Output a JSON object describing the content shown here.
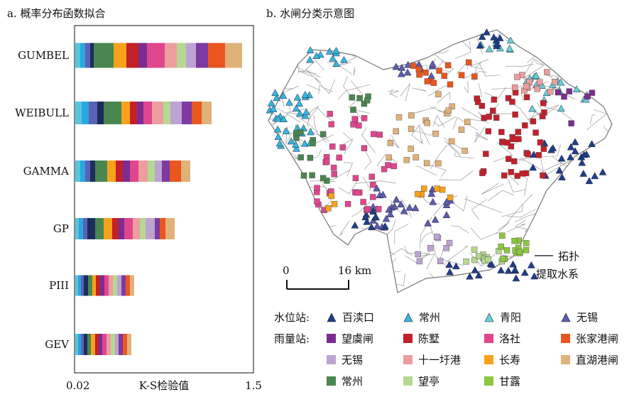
{
  "panel_a": {
    "title": "a. 概率分布函数拟合"
  },
  "panel_b": {
    "title": "b. 水闸分类示意图"
  },
  "chart_data": {
    "type": "bar",
    "orientation": "horizontal",
    "stacked": true,
    "categories": [
      "GUMBEL",
      "WEIBULL",
      "GAMMA",
      "GP",
      "PIII",
      "GEV"
    ],
    "xlabel": "K-S检验值",
    "x_ticks": [
      "0.02",
      "1.5"
    ],
    "xlim": [
      0.02,
      1.5
    ],
    "segment_colors": [
      "#56c7dc",
      "#2aa7e0",
      "#5a62b5",
      "#1b2d5c",
      "#4a8650",
      "#f7a21a",
      "#c4202a",
      "#7b2c91",
      "#e0468d",
      "#ec9d9e",
      "#b5d991",
      "#bda3d2",
      "#7d3aa0",
      "#e9561e",
      "#e0b179"
    ],
    "bars": [
      {
        "category": "GUMBEL",
        "widths_px": [
          7,
          7,
          7,
          5,
          28,
          18,
          17,
          12,
          25,
          17,
          13,
          14,
          17,
          24,
          24
        ]
      },
      {
        "category": "WEIBULL",
        "widths_px": [
          9,
          10,
          12,
          9,
          25,
          12,
          10,
          9,
          12,
          16,
          10,
          16,
          14,
          14,
          14
        ]
      },
      {
        "category": "GAMMA",
        "widths_px": [
          7,
          7,
          7,
          7,
          17,
          12,
          10,
          10,
          12,
          13,
          10,
          10,
          11,
          16,
          13
        ]
      },
      {
        "category": "GP",
        "widths_px": [
          5,
          6,
          6,
          11,
          12,
          12,
          9,
          8,
          12,
          10,
          8,
          13,
          7,
          8,
          13
        ]
      },
      {
        "category": "PIII",
        "widths_px": [
          4,
          4,
          4,
          6,
          6,
          5,
          6,
          6,
          6,
          6,
          6,
          6,
          6,
          6,
          6
        ]
      },
      {
        "category": "GEV",
        "widths_px": [
          4,
          4,
          4,
          5,
          5,
          6,
          5,
          5,
          6,
          6,
          6,
          5,
          6,
          6,
          6
        ]
      }
    ]
  },
  "map": {
    "scale": {
      "zero": "0",
      "dist": "16 km"
    },
    "topology_label_1": "拓扑",
    "topology_label_2": "提取水系"
  },
  "legend": {
    "water_station_label": "水位站:",
    "rain_station_label": "雨量站:",
    "water_items": [
      {
        "label": "百渎口",
        "color": "#1f3d8a"
      },
      {
        "label": "常州",
        "color": "#36b6df"
      },
      {
        "label": "青阳",
        "color": "#67cfd8"
      },
      {
        "label": "无锡",
        "color": "#5b5db0"
      }
    ],
    "rain_items": [
      {
        "label": "望虞闸",
        "color": "#7b2c91"
      },
      {
        "label": "陈墅",
        "color": "#c4202a"
      },
      {
        "label": "洛社",
        "color": "#e0468d"
      },
      {
        "label": "张家港闸",
        "color": "#e9561e"
      },
      {
        "label": "无锡",
        "color": "#bda3d2"
      },
      {
        "label": "十一圩港",
        "color": "#ec9d9e"
      },
      {
        "label": "长寿",
        "color": "#f7a21a"
      },
      {
        "label": "直湖港闸",
        "color": "#e0b179"
      },
      {
        "label": "常州",
        "color": "#4a8650"
      },
      {
        "label": "望亭",
        "color": "#b5d991"
      },
      {
        "label": "甘露",
        "color": "#8cc63f"
      }
    ]
  }
}
